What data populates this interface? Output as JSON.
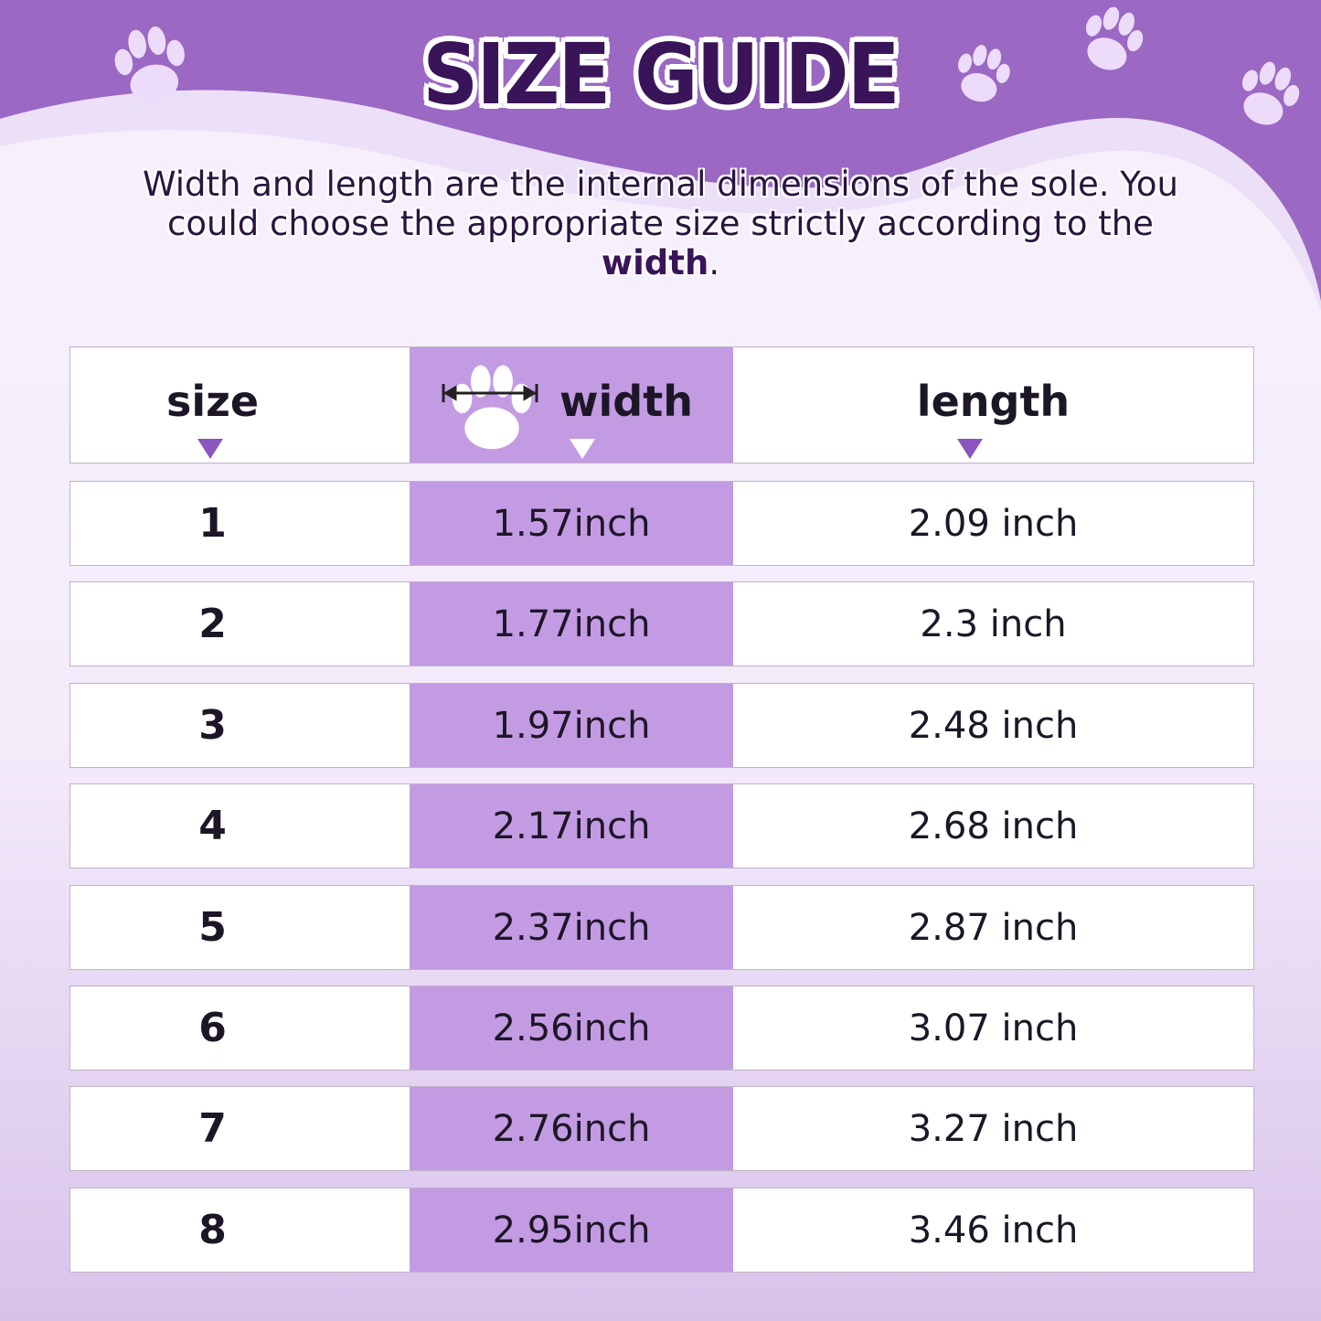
{
  "title": "SIZE GUIDE",
  "intro": {
    "text": "Width and length are the internal dimensions of the sole. You could choose the appropriate size strictly according to the ",
    "bold": "width",
    "end": "."
  },
  "colors": {
    "banner": "#9b68c4",
    "highlight_column": "#c39be3",
    "title_text": "#3a1458"
  },
  "table": {
    "headers": {
      "size": "size",
      "width": "width",
      "length": "length"
    },
    "header_icons": [
      "paw-icon",
      "width-arrow-icon",
      "triangle-down-icon"
    ],
    "rows": [
      {
        "size": "1",
        "width": "1.57inch",
        "length": "2.09 inch"
      },
      {
        "size": "2",
        "width": "1.77inch",
        "length": "2.3 inch"
      },
      {
        "size": "3",
        "width": "1.97inch",
        "length": "2.48 inch"
      },
      {
        "size": "4",
        "width": "2.17inch",
        "length": "2.68 inch"
      },
      {
        "size": "5",
        "width": "2.37inch",
        "length": "2.87 inch"
      },
      {
        "size": "6",
        "width": "2.56inch",
        "length": "3.07 inch"
      },
      {
        "size": "7",
        "width": "2.76inch",
        "length": "3.27 inch"
      },
      {
        "size": "8",
        "width": "2.95inch",
        "length": "3.46 inch"
      }
    ]
  }
}
